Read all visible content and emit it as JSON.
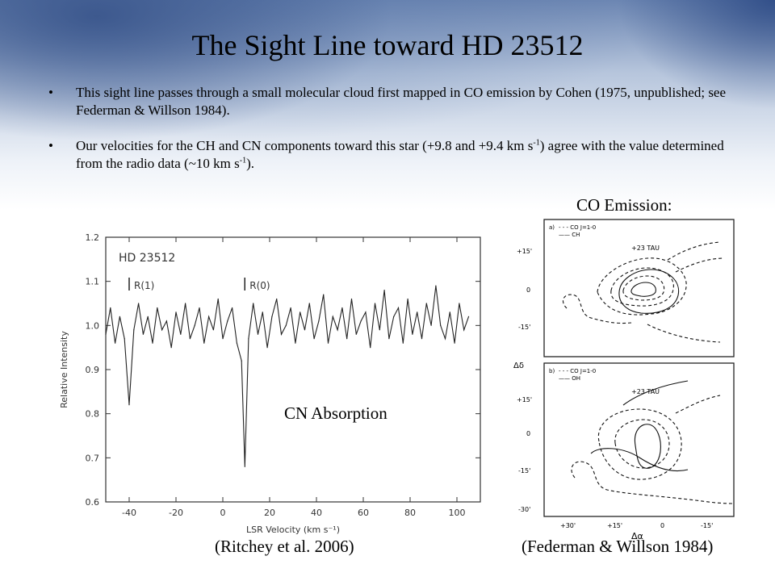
{
  "slide": {
    "title": "The Sight Line toward HD 23512",
    "bullets": [
      {
        "marker": "•",
        "text": "This sight line passes through a small molecular cloud first mapped in CO emission by Cohen (1975, unpublished; see Federman & Willson 1984)."
      },
      {
        "marker": "•",
        "text_parts": [
          "Our velocities for the CH and CN components toward this star (+9.8 and +9.4 km s",
          "-1",
          ") agree with the value determined from the radio data (~10 km s",
          "-1",
          ")."
        ]
      }
    ],
    "co_emission_label": "CO Emission:",
    "cn_absorption_label": "CN Absorption",
    "left_citation": "(Ritchey et al. 2006)",
    "right_citation": "(Federman & Willson 1984)"
  },
  "chart_data": {
    "type": "line",
    "title": "HD 23512",
    "xlabel": "LSR Velocity (km s⁻¹)",
    "ylabel": "Relative Intensity",
    "xlim": [
      -50,
      110
    ],
    "ylim": [
      0.6,
      1.2
    ],
    "x_ticks": [
      "-40",
      "-20",
      "0",
      "20",
      "40",
      "60",
      "80",
      "100"
    ],
    "y_ticks": [
      "0.6",
      "0.7",
      "0.8",
      "0.9",
      "1.0",
      "1.1",
      "1.2"
    ],
    "annotations": [
      {
        "label": "R(1)",
        "x": -40
      },
      {
        "label": "R(0)",
        "x": 9.4
      }
    ],
    "series": [
      {
        "x": [
          -50,
          -48,
          -46,
          -44,
          -42,
          -40,
          -38,
          -36,
          -34,
          -32,
          -30,
          -28,
          -26,
          -24,
          -22,
          -20,
          -18,
          -16,
          -14,
          -12,
          -10,
          -8,
          -6,
          -4,
          -2,
          0,
          2,
          4,
          6,
          8,
          9.4,
          11,
          13,
          15,
          17,
          19,
          21,
          23,
          25,
          27,
          29,
          31,
          33,
          35,
          37,
          39,
          41,
          43,
          45,
          47,
          49,
          51,
          53,
          55,
          57,
          59,
          61,
          63,
          65,
          67,
          69,
          71,
          73,
          75,
          77,
          79,
          81,
          83,
          85,
          87,
          89,
          91,
          93,
          95,
          97,
          99,
          101,
          103,
          105
        ],
        "y": [
          0.98,
          1.04,
          0.96,
          1.02,
          0.97,
          0.82,
          0.99,
          1.05,
          0.98,
          1.02,
          0.96,
          1.04,
          0.99,
          1.01,
          0.95,
          1.03,
          0.98,
          1.05,
          0.97,
          1.0,
          1.04,
          0.96,
          1.02,
          0.99,
          1.06,
          0.97,
          1.01,
          1.04,
          0.96,
          0.92,
          0.68,
          0.97,
          1.05,
          0.98,
          1.03,
          0.95,
          1.02,
          1.06,
          0.98,
          1.0,
          1.04,
          0.96,
          1.03,
          0.99,
          1.05,
          0.97,
          1.01,
          1.07,
          0.96,
          1.02,
          0.99,
          1.04,
          0.97,
          1.06,
          0.98,
          1.01,
          1.03,
          0.95,
          1.05,
          0.99,
          1.08,
          0.97,
          1.02,
          1.04,
          0.96,
          1.06,
          0.98,
          1.03,
          0.97,
          1.05,
          1.0,
          1.09,
          1.0,
          0.97,
          1.03,
          0.96,
          1.05,
          0.99,
          1.02
        ]
      }
    ]
  },
  "co_map": {
    "panels": [
      {
        "label": "a)",
        "legend": [
          "- - - CO  J=1-0",
          "—— CH"
        ],
        "star_label": "+23 TAU"
      },
      {
        "label": "b)",
        "legend": [
          "- - - CO  J=1-0",
          "—— OH"
        ],
        "star_label": "+23 TAU"
      }
    ],
    "y_ticks_a": [
      "+15'",
      "0",
      "-15'"
    ],
    "y_ticks_b": [
      "+15'",
      "0",
      "-15'",
      "-30'"
    ],
    "x_ticks": [
      "+30'",
      "+15'",
      "0",
      "-15'"
    ],
    "y_axis_label": "Δδ",
    "x_axis_label": "Δα"
  }
}
